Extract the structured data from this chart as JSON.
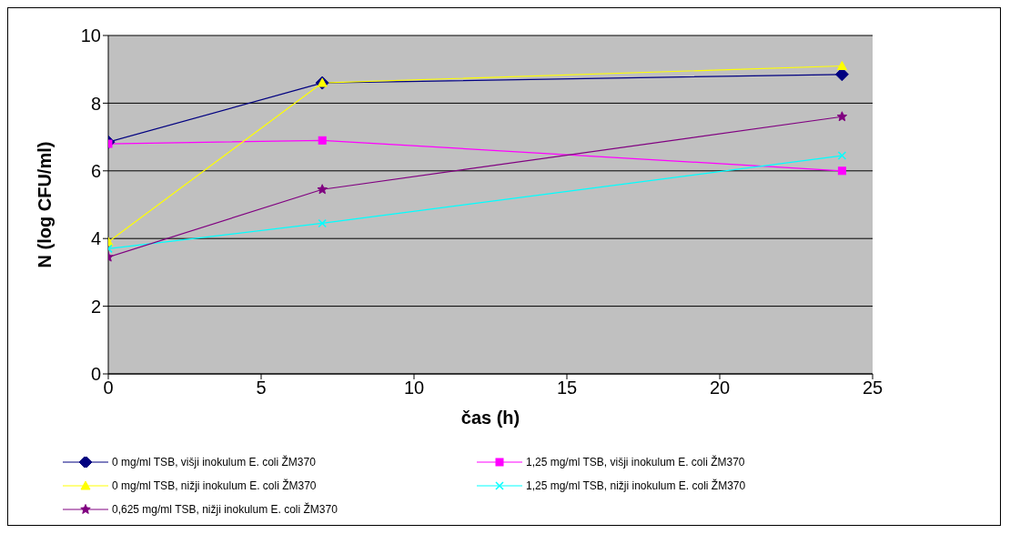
{
  "chart_data": {
    "type": "line",
    "xlabel": "čas (h)",
    "ylabel": "N (log CFU/ml)",
    "x": [
      0,
      7,
      24
    ],
    "xlim": [
      0,
      25
    ],
    "xticks": [
      0,
      5,
      10,
      15,
      20,
      25
    ],
    "ylim": [
      0,
      10
    ],
    "yticks": [
      0,
      2,
      4,
      6,
      8,
      10
    ],
    "grid": "y",
    "legend": "bottom",
    "series": [
      {
        "name": "0 mg/ml TSB, višji inokulum E. coli ŽM370",
        "color": "#000080",
        "marker": "diamond",
        "values": [
          6.85,
          8.6,
          8.85
        ]
      },
      {
        "name": "1,25 mg/ml TSB, višji inokulum E. coli ŽM370",
        "color": "#ff00ff",
        "marker": "square",
        "values": [
          6.8,
          6.9,
          6.0
        ]
      },
      {
        "name": "0 mg/ml TSB, nižji inokulum E. coli ŽM370",
        "color": "#ffff00",
        "marker": "triangle",
        "values": [
          3.9,
          8.6,
          9.1
        ]
      },
      {
        "name": "1,25 mg/ml TSB, nižji inokulum E. coli ŽM370",
        "color": "#00ffff",
        "marker": "cross",
        "values": [
          3.7,
          4.45,
          6.45
        ]
      },
      {
        "name": "0,625 mg/ml TSB, nižji inokulum E. coli ŽM370",
        "color": "#800080",
        "marker": "star",
        "values": [
          3.45,
          5.45,
          7.6
        ]
      }
    ]
  }
}
